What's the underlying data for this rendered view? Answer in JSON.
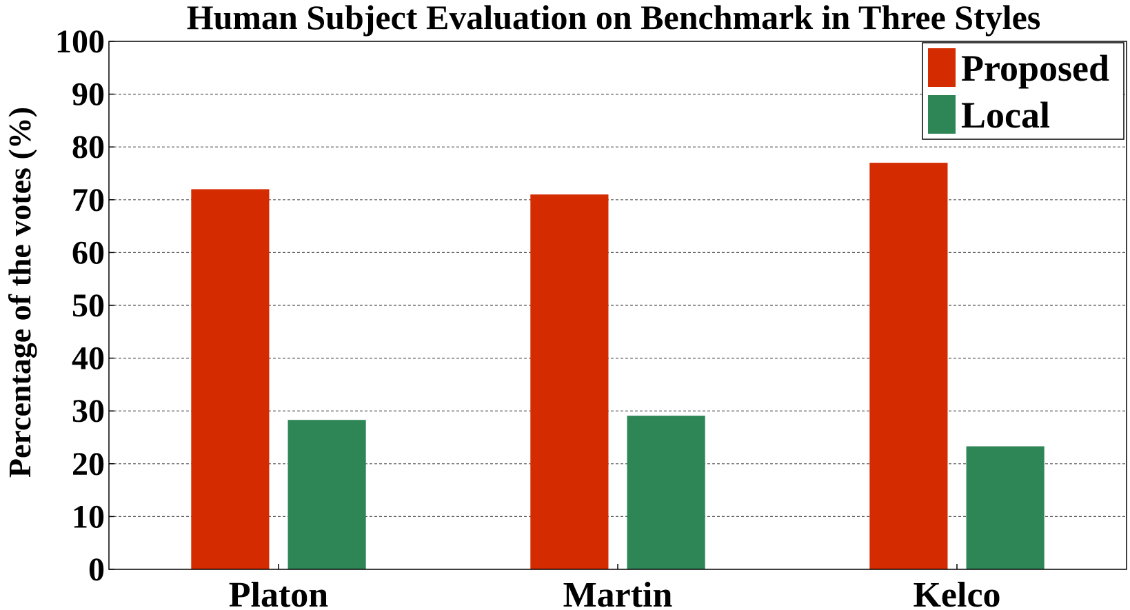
{
  "chart_data": {
    "type": "bar",
    "title": "Human Subject Evaluation on Benchmark in Three Styles",
    "xlabel": "",
    "ylabel": "Percentage of the votes (%)",
    "ylim": [
      0,
      100
    ],
    "yticks": [
      0,
      10,
      20,
      30,
      40,
      50,
      60,
      70,
      80,
      90,
      100
    ],
    "grid": "horizontal-dashed",
    "legend_position": "top-right",
    "categories": [
      "Platon",
      "Martin",
      "Kelco"
    ],
    "series": [
      {
        "name": "Proposed",
        "color": "#d42b00",
        "values": [
          72,
          71,
          77
        ]
      },
      {
        "name": "Local",
        "color": "#2e8656",
        "values": [
          28.3,
          29.1,
          23.3
        ]
      }
    ]
  }
}
